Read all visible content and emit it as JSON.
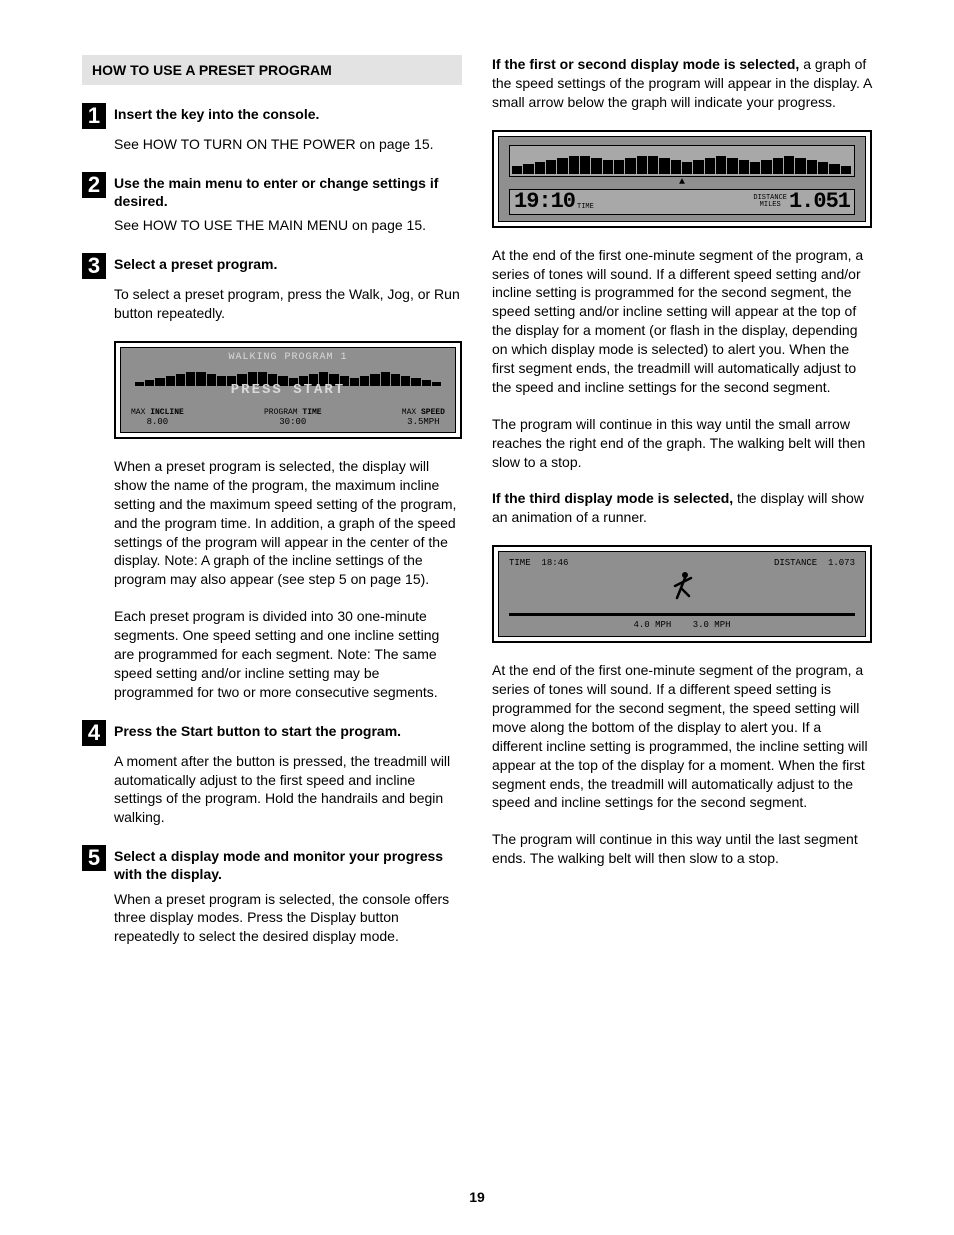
{
  "section_header": "HOW TO USE A PRESET PROGRAM",
  "page_number": "19",
  "left": {
    "steps": [
      {
        "num": "1",
        "title": "Insert the key into the console.",
        "body": "See HOW TO TURN ON THE POWER on page 15."
      },
      {
        "num": "2",
        "title": "Use the main menu to enter or change settings if desired.",
        "body": "See HOW TO USE THE MAIN MENU on page 15."
      },
      {
        "num": "3",
        "title": "Select a preset program.",
        "body1": "To select a preset program, press the Walk, Jog, or Run button repeatedly.",
        "body2": "When a preset program is selected, the display will show the name of the program, the maximum incline setting and the maximum speed setting of the program, and the program time. In addition, a graph of the speed settings of the program will appear in the center of the display. Note: A graph of the incline settings of the program may also appear (see step 5 on page 15).",
        "body3": "Each preset program is divided into 30 one-minute segments. One speed setting and one incline setting are programmed for each segment. Note: The same speed setting and/or incline setting may be programmed for two or more consecutive segments."
      },
      {
        "num": "4",
        "title": "Press the Start button to start the program.",
        "body": "A moment after the button is pressed, the treadmill will automatically adjust to the first speed and incline settings of the program. Hold the handrails and begin walking."
      },
      {
        "num": "5",
        "title": "Select a display mode and monitor your progress with the display.",
        "body": "When a preset program is selected, the console offers three display modes. Press the Display button repeatedly to select the desired display mode."
      }
    ],
    "lcdA": {
      "title": "WALKING PROGRAM 1",
      "press": "PRESS START",
      "bars": [
        4,
        6,
        8,
        10,
        12,
        14,
        14,
        12,
        10,
        10,
        12,
        14,
        14,
        12,
        10,
        8,
        10,
        12,
        14,
        12,
        10,
        8,
        10,
        12,
        14,
        12,
        10,
        8,
        6,
        4
      ],
      "labels": {
        "incline_lbl_pre": "MAX ",
        "incline_lbl_bold": "INCLINE",
        "incline_val": "8.00",
        "time_lbl_pre": "PROGRAM ",
        "time_lbl_bold": "TIME",
        "time_val": "30:00",
        "speed_lbl_pre": "MAX ",
        "speed_lbl_bold": "SPEED",
        "speed_val": "3.5MPH"
      }
    }
  },
  "right": {
    "p1_bold": "If the first or second display mode is selected,",
    "p1_rest": " a graph of the speed settings of the program will appear in the display. A small arrow below the graph will indicate your progress.",
    "lcdB": {
      "bars": [
        8,
        10,
        12,
        14,
        16,
        18,
        18,
        16,
        14,
        14,
        16,
        18,
        18,
        16,
        14,
        12,
        14,
        16,
        18,
        16,
        14,
        12,
        14,
        16,
        18,
        16,
        14,
        12,
        10,
        8
      ],
      "time": "19:10",
      "time_lbl": "TIME",
      "dist_lbl_top": "DISTANCE",
      "dist_lbl_bot": "MILES",
      "dist": "1.051"
    },
    "p2": "At the end of the first one-minute segment of the program, a series of tones will sound. If a different speed setting and/or incline setting is programmed for the second segment, the speed setting and/or incline setting will appear at the top of the display for a moment (or flash in the display, depending on which display mode is selected) to alert you. When the first segment ends, the treadmill will automatically adjust to the speed and incline settings for the second segment.",
    "p3": "The program will continue in this way until the small arrow reaches the right end of the graph. The walking belt will then slow to a stop.",
    "p4_bold": "If the third display mode is selected,",
    "p4_rest": " the display will show an animation of a runner.",
    "lcdC": {
      "time_lbl": "TIME",
      "time_val": "18:46",
      "dist_lbl": "DISTANCE",
      "dist_val": "1.073",
      "mph1": "4.0 MPH",
      "mph2": "3.0 MPH"
    },
    "p5": "At the end of the first one-minute segment of the program, a series of tones will sound. If a different speed setting is programmed for the second segment, the speed setting will move along the bottom of the display to alert you. If a different incline setting is programmed, the incline setting will appear at the top of the display for a moment. When the first segment ends, the treadmill will automatically adjust to the speed and incline settings for the second segment.",
    "p6": "The program will continue in this way until the last segment ends. The walking belt will then slow to a stop."
  }
}
